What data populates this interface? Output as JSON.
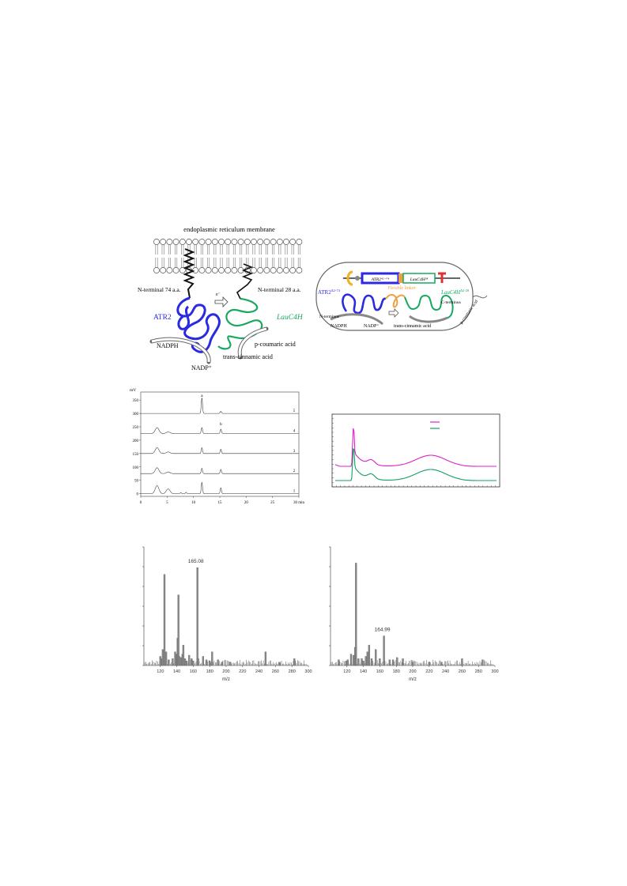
{
  "figure_top": {
    "membrane_label": "endoplasmic reticulum membrane",
    "nterm_left": "N-terminal 74 a.a.",
    "nterm_right": "N-terminal 28 a.a.",
    "atr2": "ATR2",
    "lauc4h": "LauC4H",
    "nadph": "NADPH",
    "nadp": "NADP⁺",
    "coumaric": "p-coumaric acid",
    "cinnamic": "trans-cinnamic acid"
  },
  "figure_fusion": {
    "box_atr2": "ATR2⁴²⁻⁷⁴",
    "box_lauc4h": "LauC4H²⁸",
    "linker": "Flexible linker",
    "atr2_label": "ATR2",
    "atr2_sup": "Δ2-74",
    "lauc4h_label": "LauC4H",
    "lauc4h_sup": "Δ2-28",
    "n_terminus": "N-terminus",
    "c_terminus": "C-terminus",
    "nadph": "NADPH",
    "nadp": "NADP⁺",
    "cinnamic": "trans-cinnamic acid",
    "coumaric": "p-coumaric acid"
  },
  "chart_data": [
    {
      "type": "line",
      "ylabel": "mV",
      "xunit": "min",
      "x_ticks": [
        "0",
        "5",
        "10",
        "15",
        "20",
        "25",
        "30"
      ],
      "y_ticks": [
        "0",
        "50",
        "100",
        "150",
        "200",
        "250",
        "300",
        "350"
      ],
      "xlim": [
        0,
        30
      ],
      "ylim": [
        -10,
        380
      ],
      "trace_labels": [
        "1",
        "2",
        "3",
        "4",
        "5"
      ],
      "peak_labels": [
        {
          "text": "a",
          "x": 11.6
        },
        {
          "text": "b",
          "x": 15.2
        }
      ],
      "series": [
        {
          "baseline": 0,
          "peaks": [
            [
              3.1,
              30
            ],
            [
              5.2,
              18
            ],
            [
              7.6,
              4
            ],
            [
              8.6,
              5
            ],
            [
              11.6,
              42
            ],
            [
              15.2,
              22
            ]
          ]
        },
        {
          "baseline": 75,
          "peaks": [
            [
              3.1,
              22
            ],
            [
              5.2,
              6
            ],
            [
              11.6,
              20
            ],
            [
              15.2,
              16
            ]
          ]
        },
        {
          "baseline": 150,
          "peaks": [
            [
              3.1,
              22
            ],
            [
              5.2,
              6
            ],
            [
              11.6,
              22
            ],
            [
              15.2,
              16
            ]
          ]
        },
        {
          "baseline": 225,
          "peaks": [
            [
              3.1,
              22
            ],
            [
              5.2,
              6
            ],
            [
              11.6,
              22
            ],
            [
              15.2,
              16
            ]
          ]
        },
        {
          "baseline": 300,
          "peaks": [
            [
              11.6,
              58
            ],
            [
              15.2,
              8
            ]
          ]
        }
      ]
    },
    {
      "type": "line",
      "grid": false,
      "series": [
        {
          "color": "#e020c8",
          "legend_swatch": true
        },
        {
          "color": "#10a060",
          "legend_swatch": true
        }
      ]
    },
    {
      "type": "bar",
      "xlabel": "m/z",
      "x_ticks": [
        "120",
        "140",
        "160",
        "180",
        "200",
        "220",
        "240",
        "260",
        "280",
        "300"
      ],
      "xlim": [
        100,
        300
      ],
      "ylim": [
        0,
        100
      ],
      "annotation": "165.08",
      "annotation_x": 165.08,
      "peaks": [
        [
          120,
          8
        ],
        [
          122,
          6
        ],
        [
          123,
          14
        ],
        [
          125,
          80
        ],
        [
          127,
          12
        ],
        [
          130,
          5
        ],
        [
          135,
          6
        ],
        [
          138,
          12
        ],
        [
          140,
          10
        ],
        [
          141,
          24
        ],
        [
          142,
          62
        ],
        [
          143,
          8
        ],
        [
          145,
          7
        ],
        [
          147,
          10
        ],
        [
          148,
          18
        ],
        [
          150,
          6
        ],
        [
          152,
          4
        ],
        [
          155,
          9
        ],
        [
          158,
          6
        ],
        [
          160,
          4
        ],
        [
          165.08,
          86
        ],
        [
          166,
          6
        ],
        [
          172,
          8
        ],
        [
          176,
          5
        ],
        [
          180,
          4
        ],
        [
          183,
          12
        ],
        [
          190,
          5
        ],
        [
          195,
          3
        ],
        [
          205,
          3
        ],
        [
          248,
          12
        ],
        [
          265,
          3
        ],
        [
          283,
          6
        ]
      ]
    },
    {
      "type": "bar",
      "xlabel": "m/z",
      "x_ticks": [
        "120",
        "140",
        "160",
        "180",
        "200",
        "220",
        "240",
        "260",
        "280",
        "300"
      ],
      "xlim": [
        100,
        300
      ],
      "ylim": [
        0,
        100
      ],
      "annotation": "164.99",
      "annotation_x": 164.99,
      "peaks": [
        [
          110,
          5
        ],
        [
          119,
          4
        ],
        [
          121,
          5
        ],
        [
          125,
          10
        ],
        [
          128,
          9
        ],
        [
          130,
          16
        ],
        [
          131,
          90
        ],
        [
          134,
          6
        ],
        [
          138,
          6
        ],
        [
          140,
          4
        ],
        [
          143,
          8
        ],
        [
          145,
          12
        ],
        [
          147,
          18
        ],
        [
          150,
          6
        ],
        [
          155,
          14
        ],
        [
          160,
          6
        ],
        [
          164.99,
          26
        ],
        [
          172,
          5
        ],
        [
          176,
          5
        ],
        [
          181,
          7
        ],
        [
          188,
          6
        ],
        [
          200,
          3
        ],
        [
          220,
          3
        ],
        [
          235,
          3
        ],
        [
          260,
          6
        ],
        [
          285,
          5
        ]
      ]
    }
  ],
  "colors": {
    "atr2": "#2a2ae0",
    "lauc4h": "#18a860",
    "linker": "#f0a040",
    "promoter": "#f0b020",
    "terminator": "#e03030",
    "magenta": "#e020c8",
    "green": "#10a060"
  }
}
